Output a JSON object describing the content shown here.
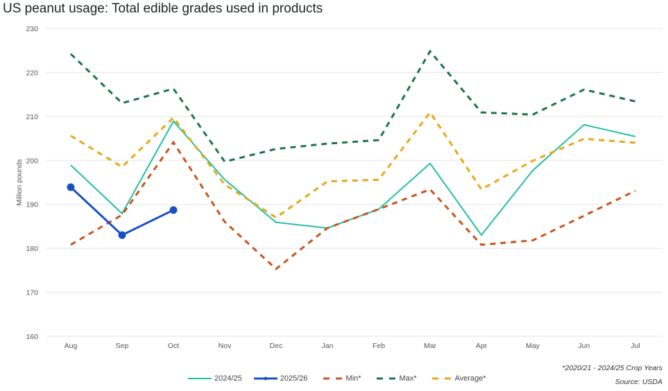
{
  "chart_data": {
    "type": "line",
    "title": "US peanut usage: Total edible grades used in products",
    "xlabel": "",
    "ylabel": "Million pounds",
    "ylim": [
      160,
      230
    ],
    "yticks": [
      160,
      170,
      180,
      190,
      200,
      210,
      220,
      230
    ],
    "grid": true,
    "legend_position": "bottom",
    "categories": [
      "Aug",
      "Sep",
      "Oct",
      "Nov",
      "Dec",
      "Jan",
      "Feb",
      "Mar",
      "Apr",
      "May",
      "Jun",
      "Jul"
    ],
    "series": [
      {
        "name": "2024/25",
        "color": "#1fbf9f",
        "style": "solid",
        "markers": false,
        "values": [
          198.9,
          187.9,
          208.9,
          195.6,
          185.9,
          184.6,
          188.9,
          199.3,
          183.0,
          197.7,
          208.1,
          205.4
        ]
      },
      {
        "name": "2025/26",
        "color": "#1a4fc4",
        "style": "solid",
        "markers": true,
        "values": [
          193.9,
          183.0,
          188.7,
          null,
          null,
          null,
          null,
          null,
          null,
          null,
          null,
          null
        ]
      },
      {
        "name": "Min*",
        "color": "#c9531a",
        "style": "dashed",
        "markers": false,
        "values": [
          180.8,
          187.6,
          204.1,
          186.0,
          175.3,
          184.6,
          188.9,
          193.4,
          180.8,
          181.8,
          187.4,
          193.1
        ]
      },
      {
        "name": "Max*",
        "color": "#1b7449",
        "style": "dashed",
        "markers": false,
        "values": [
          224.2,
          213.0,
          216.3,
          199.7,
          202.6,
          203.8,
          204.6,
          224.8,
          210.9,
          210.4,
          216.1,
          213.4
        ]
      },
      {
        "name": "Average*",
        "color": "#e8a715",
        "style": "dashed",
        "markers": false,
        "values": [
          205.6,
          198.5,
          209.7,
          194.5,
          187.0,
          195.2,
          195.6,
          210.9,
          193.4,
          199.9,
          204.9,
          204.0
        ]
      }
    ],
    "footnote": "*2020/21 - 2024/25 Crop Years",
    "source": "Source: USDA"
  }
}
